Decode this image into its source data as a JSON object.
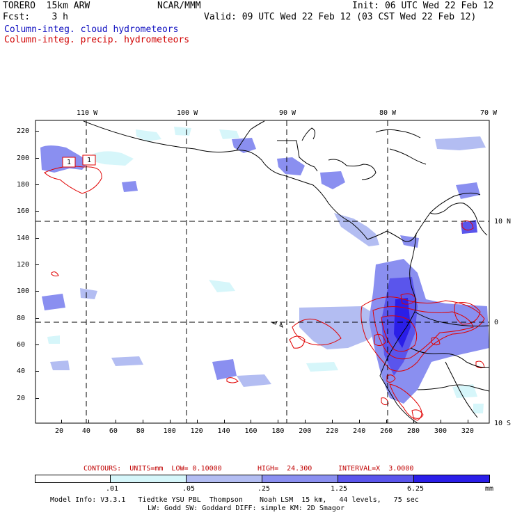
{
  "header": {
    "model": "TORERO  15km ARW",
    "org": "NCAR/MMM",
    "init": "Init: 06 UTC Wed 22 Feb 12",
    "fcst": "Fcst:    3 h",
    "valid": "Valid: 09 UTC Wed 22 Feb 12 (03 CST Wed 22 Feb 12)"
  },
  "legend": {
    "cloud": "Column-integ. cloud hydrometeors",
    "precip": "Column-integ. precip. hydrometeors",
    "cloud_color": "#1010c0",
    "precip_color": "#d00000"
  },
  "map": {
    "lon_labels": [
      "110 W",
      "100 W",
      "90 W",
      "80 W",
      "70 W"
    ],
    "lat_labels": [
      "10 N",
      "0",
      "10 S"
    ],
    "y_ticks": [
      "220",
      "200",
      "180",
      "160",
      "140",
      "120",
      "100",
      "80",
      "60",
      "40",
      "20"
    ],
    "x_ticks": [
      "20",
      "40",
      "60",
      "80",
      "100",
      "120",
      "140",
      "160",
      "180",
      "200",
      "220",
      "240",
      "260",
      "280",
      "300",
      "320"
    ],
    "box_labels": [
      "1",
      "1"
    ]
  },
  "contours": {
    "units": "CONTOURS:  UNITS=mm  LOW= 0.10000",
    "high": "HIGH=  24.300",
    "interval": "INTERVAL=X  3.0000"
  },
  "colorbar": {
    "labels": [
      ".01",
      ".05",
      ".25",
      "1.25",
      "6.25"
    ],
    "unit": "mm",
    "colors": [
      "#ffffff",
      "#d6f6fa",
      "#b3bdf2",
      "#8a8ff0",
      "#5a55ec",
      "#2a1ee8"
    ]
  },
  "footer": {
    "line1": "Model Info: V3.3.1   Tiedtke YSU PBL  Thompson    Noah LSM  15 km,   44 levels,   75 sec",
    "line2": "LW: Godd SW: Goddard DIFF: simple KM: 2D Smagor"
  }
}
